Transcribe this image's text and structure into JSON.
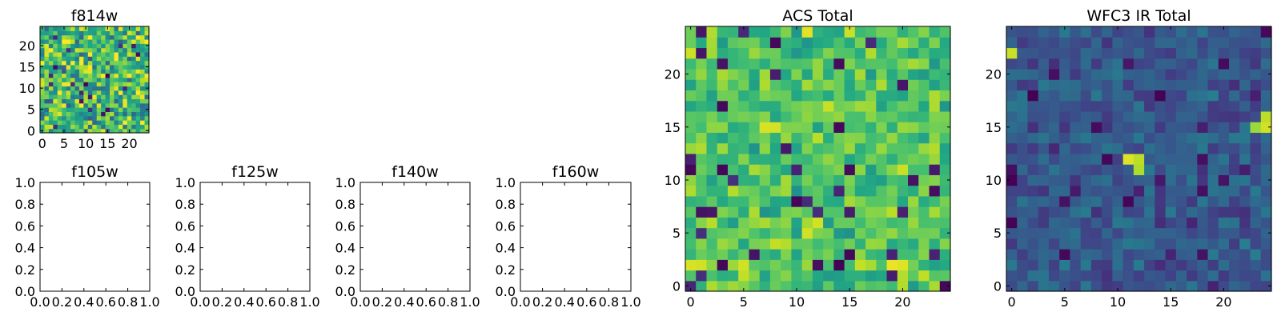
{
  "figure": {
    "background": "#ffffff",
    "colormap": "viridis"
  },
  "chart_data": [
    {
      "type": "heatmap",
      "title": "f814w",
      "xticks": [
        "0",
        "5",
        "10",
        "15",
        "20"
      ],
      "yticks": [
        "0",
        "5",
        "10",
        "15",
        "20"
      ],
      "xlim": [
        -0.5,
        24.5
      ],
      "ylim": [
        -0.5,
        24.5
      ],
      "grid_size": 25,
      "seed": 11,
      "mean": 0.68,
      "spread": 0.55
    },
    {
      "type": "heatmap",
      "title": "ACS Total",
      "xticks": [
        "0",
        "5",
        "10",
        "15",
        "20"
      ],
      "yticks": [
        "0",
        "5",
        "10",
        "15",
        "20"
      ],
      "xlim": [
        -0.5,
        24.5
      ],
      "ylim": [
        -0.5,
        24.5
      ],
      "grid_size": 25,
      "seed": 37,
      "mean": 0.72,
      "spread": 0.3,
      "peaks": [
        {
          "x": 11,
          "y": 24,
          "value": 0.96
        },
        {
          "x": 7,
          "y": 15,
          "value": 0.94
        },
        {
          "x": 8,
          "y": 15,
          "value": 0.93
        },
        {
          "x": 19,
          "y": 2,
          "value": 0.97
        },
        {
          "x": 20,
          "y": 2,
          "value": 0.95
        },
        {
          "x": 0,
          "y": 2,
          "value": 0.94
        },
        {
          "x": 1,
          "y": 2,
          "value": 0.93
        },
        {
          "x": 12,
          "y": 6,
          "value": 0.93
        }
      ],
      "dips": [
        {
          "x": 8,
          "y": 23,
          "value": 0.02
        },
        {
          "x": 14,
          "y": 21,
          "value": 0.03
        },
        {
          "x": 3,
          "y": 21,
          "value": 0.05
        },
        {
          "x": 14,
          "y": 15,
          "value": 0.02
        },
        {
          "x": 12,
          "y": 2,
          "value": 0.04
        },
        {
          "x": 21,
          "y": 10,
          "value": 0.05
        },
        {
          "x": 24,
          "y": 0,
          "value": 0.02
        },
        {
          "x": 15,
          "y": 11,
          "value": 0.03
        }
      ]
    },
    {
      "type": "heatmap",
      "title": "WFC3 IR Total",
      "xticks": [
        "0",
        "5",
        "10",
        "15",
        "20"
      ],
      "yticks": [
        "0",
        "5",
        "10",
        "15",
        "20"
      ],
      "xlim": [
        -0.5,
        24.5
      ],
      "ylim": [
        -0.5,
        24.5
      ],
      "grid_size": 25,
      "seed": 53,
      "mean": 0.28,
      "spread": 0.2,
      "peaks": [
        {
          "x": 0,
          "y": 22,
          "value": 0.92
        },
        {
          "x": 11,
          "y": 12,
          "value": 0.95
        },
        {
          "x": 12,
          "y": 12,
          "value": 0.9
        },
        {
          "x": 12,
          "y": 11,
          "value": 0.88
        },
        {
          "x": 24,
          "y": 15,
          "value": 0.93
        },
        {
          "x": 24,
          "y": 16,
          "value": 0.9
        },
        {
          "x": 23,
          "y": 15,
          "value": 0.85
        }
      ],
      "dips": [
        {
          "x": 24,
          "y": 24,
          "value": 0.02
        },
        {
          "x": 20,
          "y": 21,
          "value": 0.03
        },
        {
          "x": 4,
          "y": 20,
          "value": 0.04
        },
        {
          "x": 8,
          "y": 15,
          "value": 0.03
        },
        {
          "x": 18,
          "y": 12,
          "value": 0.04
        },
        {
          "x": 0,
          "y": 11,
          "value": 0.04
        },
        {
          "x": 18,
          "y": 3,
          "value": 0.05
        }
      ]
    },
    {
      "type": "empty",
      "title": "f105w",
      "xticks": [
        "0.0",
        "0.2",
        "0.4",
        "0.6",
        "0.8",
        "1.0"
      ],
      "yticks": [
        "0.0",
        "0.2",
        "0.4",
        "0.6",
        "0.8",
        "1.0"
      ],
      "xlim": [
        0,
        1
      ],
      "ylim": [
        0,
        1
      ]
    },
    {
      "type": "empty",
      "title": "f125w",
      "xticks": [
        "0.0",
        "0.2",
        "0.4",
        "0.6",
        "0.8",
        "1.0"
      ],
      "yticks": [
        "0.0",
        "0.2",
        "0.4",
        "0.6",
        "0.8",
        "1.0"
      ],
      "xlim": [
        0,
        1
      ],
      "ylim": [
        0,
        1
      ]
    },
    {
      "type": "empty",
      "title": "f140w",
      "xticks": [
        "0.0",
        "0.2",
        "0.4",
        "0.6",
        "0.8",
        "1.0"
      ],
      "yticks": [
        "0.0",
        "0.2",
        "0.4",
        "0.6",
        "0.8",
        "1.0"
      ],
      "xlim": [
        0,
        1
      ],
      "ylim": [
        0,
        1
      ]
    },
    {
      "type": "empty",
      "title": "f160w",
      "xticks": [
        "0.0",
        "0.2",
        "0.4",
        "0.6",
        "0.8",
        "1.0"
      ],
      "yticks": [
        "0.0",
        "0.2",
        "0.4",
        "0.6",
        "0.8",
        "1.0"
      ],
      "xlim": [
        0,
        1
      ],
      "ylim": [
        0,
        1
      ]
    }
  ]
}
